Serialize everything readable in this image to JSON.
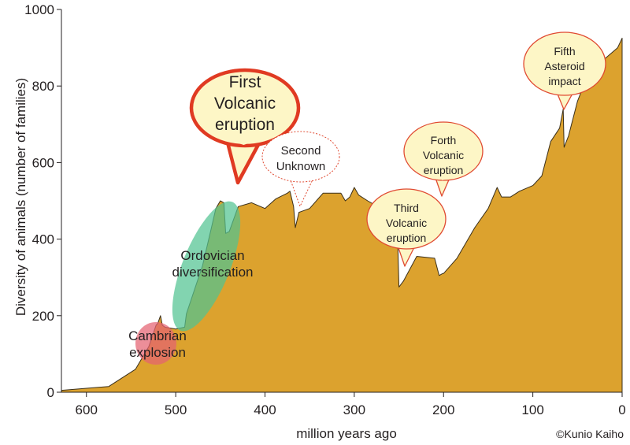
{
  "chart_data": {
    "type": "area",
    "xlabel": "million years ago",
    "ylabel": "Diversity of animals (number of families)",
    "xlim": [
      628,
      0
    ],
    "ylim": [
      0,
      1000
    ],
    "x_reversed": true,
    "xticks": [
      600,
      500,
      400,
      300,
      200,
      100,
      0
    ],
    "yticks": [
      0,
      200,
      400,
      600,
      800,
      1000
    ],
    "grid": false,
    "fill_color": "#dca22e",
    "series": [
      {
        "x": [
          628,
          575,
          545,
          530,
          522,
          520,
          517,
          515,
          512,
          500,
          490,
          488,
          470,
          460,
          455,
          450,
          446,
          444,
          440,
          430,
          415,
          400,
          388,
          375,
          372,
          368,
          366,
          362,
          350,
          335,
          315,
          310,
          305,
          300,
          295,
          285,
          270,
          260,
          252,
          250,
          245,
          230,
          210,
          205,
          201,
          200,
          185,
          165,
          150,
          140,
          135,
          125,
          115,
          100,
          90,
          80,
          70,
          66,
          65,
          60,
          50,
          45,
          35,
          25,
          5,
          0
        ],
        "y": [
          5,
          15,
          60,
          120,
          175,
          180,
          200,
          175,
          170,
          165,
          170,
          205,
          330,
          430,
          480,
          500,
          495,
          415,
          420,
          485,
          495,
          480,
          505,
          520,
          525,
          485,
          430,
          470,
          480,
          520,
          520,
          500,
          510,
          535,
          515,
          500,
          480,
          470,
          450,
          275,
          290,
          355,
          350,
          305,
          310,
          310,
          350,
          430,
          480,
          535,
          510,
          510,
          525,
          540,
          565,
          655,
          690,
          740,
          640,
          670,
          760,
          790,
          820,
          860,
          900,
          925
        ]
      }
    ],
    "annotations": [
      {
        "kind": "ellipse",
        "label": [
          "Cambrian",
          "explosion"
        ],
        "color": "#e56372"
      },
      {
        "kind": "ellipse",
        "label": [
          "Ordovician",
          "diversification"
        ],
        "color": "#52c392"
      },
      {
        "kind": "bubble",
        "label": [
          "First",
          "Volcanic",
          "eruption"
        ],
        "style": "bold-red"
      },
      {
        "kind": "bubble",
        "label": [
          "Second",
          "Unknown"
        ],
        "style": "dotted"
      },
      {
        "kind": "bubble",
        "label": [
          "Third",
          "Volcanic",
          "eruption"
        ],
        "style": "normal"
      },
      {
        "kind": "bubble",
        "label": [
          "Forth",
          "Volcanic",
          "eruption"
        ],
        "style": "normal"
      },
      {
        "kind": "bubble",
        "label": [
          "Fifth",
          "Asteroid",
          "impact"
        ],
        "style": "normal"
      }
    ]
  },
  "credit": "©Kunio Kaiho"
}
